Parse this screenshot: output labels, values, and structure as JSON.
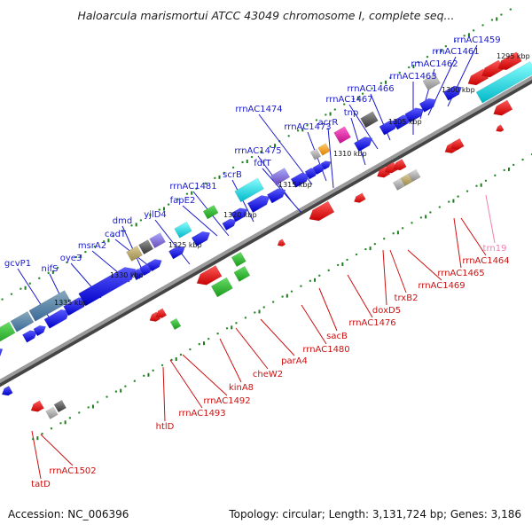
{
  "title": "Haloarcula marismortui ATCC 43049 chromosome I, complete seq...",
  "footer": {
    "accession": "Accession: NC_006396",
    "summary": "Topology: circular; Length: 3,131,724 bp; Genes: 3,186"
  },
  "scale_labels": [
    "1295 kbp",
    "1300 kbp",
    "1305 kbp",
    "1310 kbp",
    "1315 kbp",
    "1320 kbp",
    "1325 kbp",
    "1330 kbp",
    "1335 kbp"
  ],
  "top_labels": [
    "rrnAC1459",
    "rrnAC1461",
    "rrnAC1462",
    "rrnAC1463",
    "rrnAC1466",
    "rrnAC1467",
    "tnp",
    "acrR",
    "rrnAC1473",
    "rrnAC1474",
    "fdfT",
    "rrnAC1475",
    "scrB",
    "fapE2",
    "rrnAC1481",
    "yjlD4",
    "dmd",
    "cadT",
    "msrA2",
    "oye3",
    "nifS",
    "gcvP1"
  ],
  "bottom_labels": [
    "trn19",
    "rrnAC1464",
    "rrnAC1465",
    "rrnAC1469",
    "trxB2",
    "doxD5",
    "rrnAC1476",
    "sacB",
    "rrnAC1480",
    "parA4",
    "cheW2",
    "kinA8",
    "rrnAC1492",
    "rrnAC1493",
    "htlD",
    "rrnAC1502",
    "tatD"
  ],
  "colors": {
    "fwd_label": "#1a1acc",
    "rev_label": "#cc1111",
    "pink_label": "#f080b0",
    "axis": "#777777",
    "tick": "#2a8a2a"
  }
}
